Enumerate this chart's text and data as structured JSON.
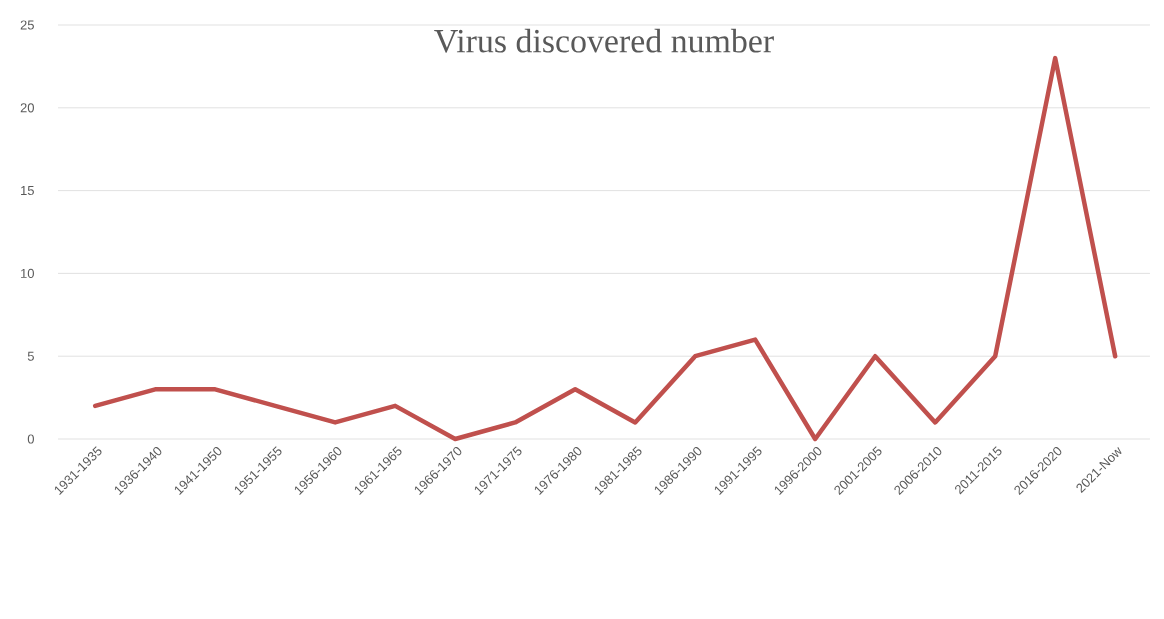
{
  "chart_data": {
    "type": "line",
    "title": "Virus discovered number",
    "categories": [
      "1931-1935",
      "1936-1940",
      "1941-1950",
      "1951-1955",
      "1956-1960",
      "1961-1965",
      "1966-1970",
      "1971-1975",
      "1976-1980",
      "1981-1985",
      "1986-1990",
      "1991-1995",
      "1996-2000",
      "2001-2005",
      "2006-2010",
      "2011-2015",
      "2016-2020",
      "2021-Now"
    ],
    "series": [
      {
        "color": "#c0504d",
        "values": [
          2,
          3,
          3,
          2,
          1,
          2,
          0,
          1,
          3,
          1,
          5,
          6,
          0,
          5,
          1,
          5,
          23,
          5
        ]
      }
    ],
    "ylim": [
      0,
      25
    ],
    "yticks": [
      0,
      5,
      10,
      15,
      20,
      25
    ],
    "grid": "y",
    "marker": "none",
    "line_style": "solid"
  }
}
